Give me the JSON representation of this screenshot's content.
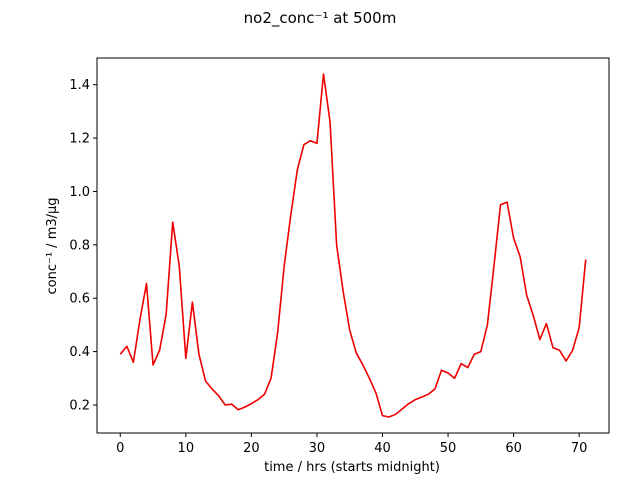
{
  "chart_data": {
    "type": "line",
    "title": "no2_conc⁻¹ at 500m",
    "xlabel": "time / hrs (starts midnight)",
    "ylabel": "conc⁻¹ / m3/µg",
    "xlim": [
      -3.55,
      74.55
    ],
    "ylim": [
      0.095,
      1.5
    ],
    "xticks": [
      0,
      10,
      20,
      30,
      40,
      50,
      60,
      70
    ],
    "yticks": [
      0.2,
      0.4,
      0.6,
      0.8,
      1.0,
      1.2,
      1.4
    ],
    "ytick_labels": [
      "0.2",
      "0.4",
      "0.6",
      "0.8",
      "1.0",
      "1.2",
      "1.4"
    ],
    "grid": false,
    "series": [
      {
        "color": "#ee0000",
        "x": [
          0,
          1,
          2,
          3,
          4,
          5,
          6,
          7,
          8,
          9,
          10,
          11,
          12,
          13,
          14,
          15,
          16,
          17,
          18,
          19,
          20,
          21,
          22,
          23,
          24,
          25,
          26,
          27,
          28,
          29,
          30,
          31,
          32,
          33,
          34,
          35,
          36,
          37,
          38,
          39,
          40,
          41,
          42,
          43,
          44,
          45,
          46,
          47,
          48,
          49,
          50,
          51,
          52,
          53,
          54,
          55,
          56,
          57,
          58,
          59,
          60,
          61,
          62,
          63,
          64,
          65,
          66,
          67,
          68,
          69,
          70,
          71
        ],
        "y": [
          0.39,
          0.42,
          0.36,
          0.52,
          0.655,
          0.35,
          0.405,
          0.54,
          0.885,
          0.72,
          0.375,
          0.585,
          0.39,
          0.29,
          0.26,
          0.235,
          0.2,
          0.203,
          0.182,
          0.192,
          0.205,
          0.22,
          0.24,
          0.3,
          0.47,
          0.72,
          0.91,
          1.08,
          1.175,
          1.19,
          1.18,
          1.44,
          1.26,
          0.8,
          0.625,
          0.48,
          0.395,
          0.35,
          0.3,
          0.245,
          0.16,
          0.155,
          0.165,
          0.185,
          0.205,
          0.22,
          0.23,
          0.24,
          0.26,
          0.33,
          0.32,
          0.3,
          0.355,
          0.34,
          0.39,
          0.4,
          0.5,
          0.72,
          0.95,
          0.96,
          0.825,
          0.755,
          0.61,
          0.535,
          0.445,
          0.505,
          0.415,
          0.405,
          0.365,
          0.405,
          0.49,
          0.745
        ]
      }
    ]
  }
}
